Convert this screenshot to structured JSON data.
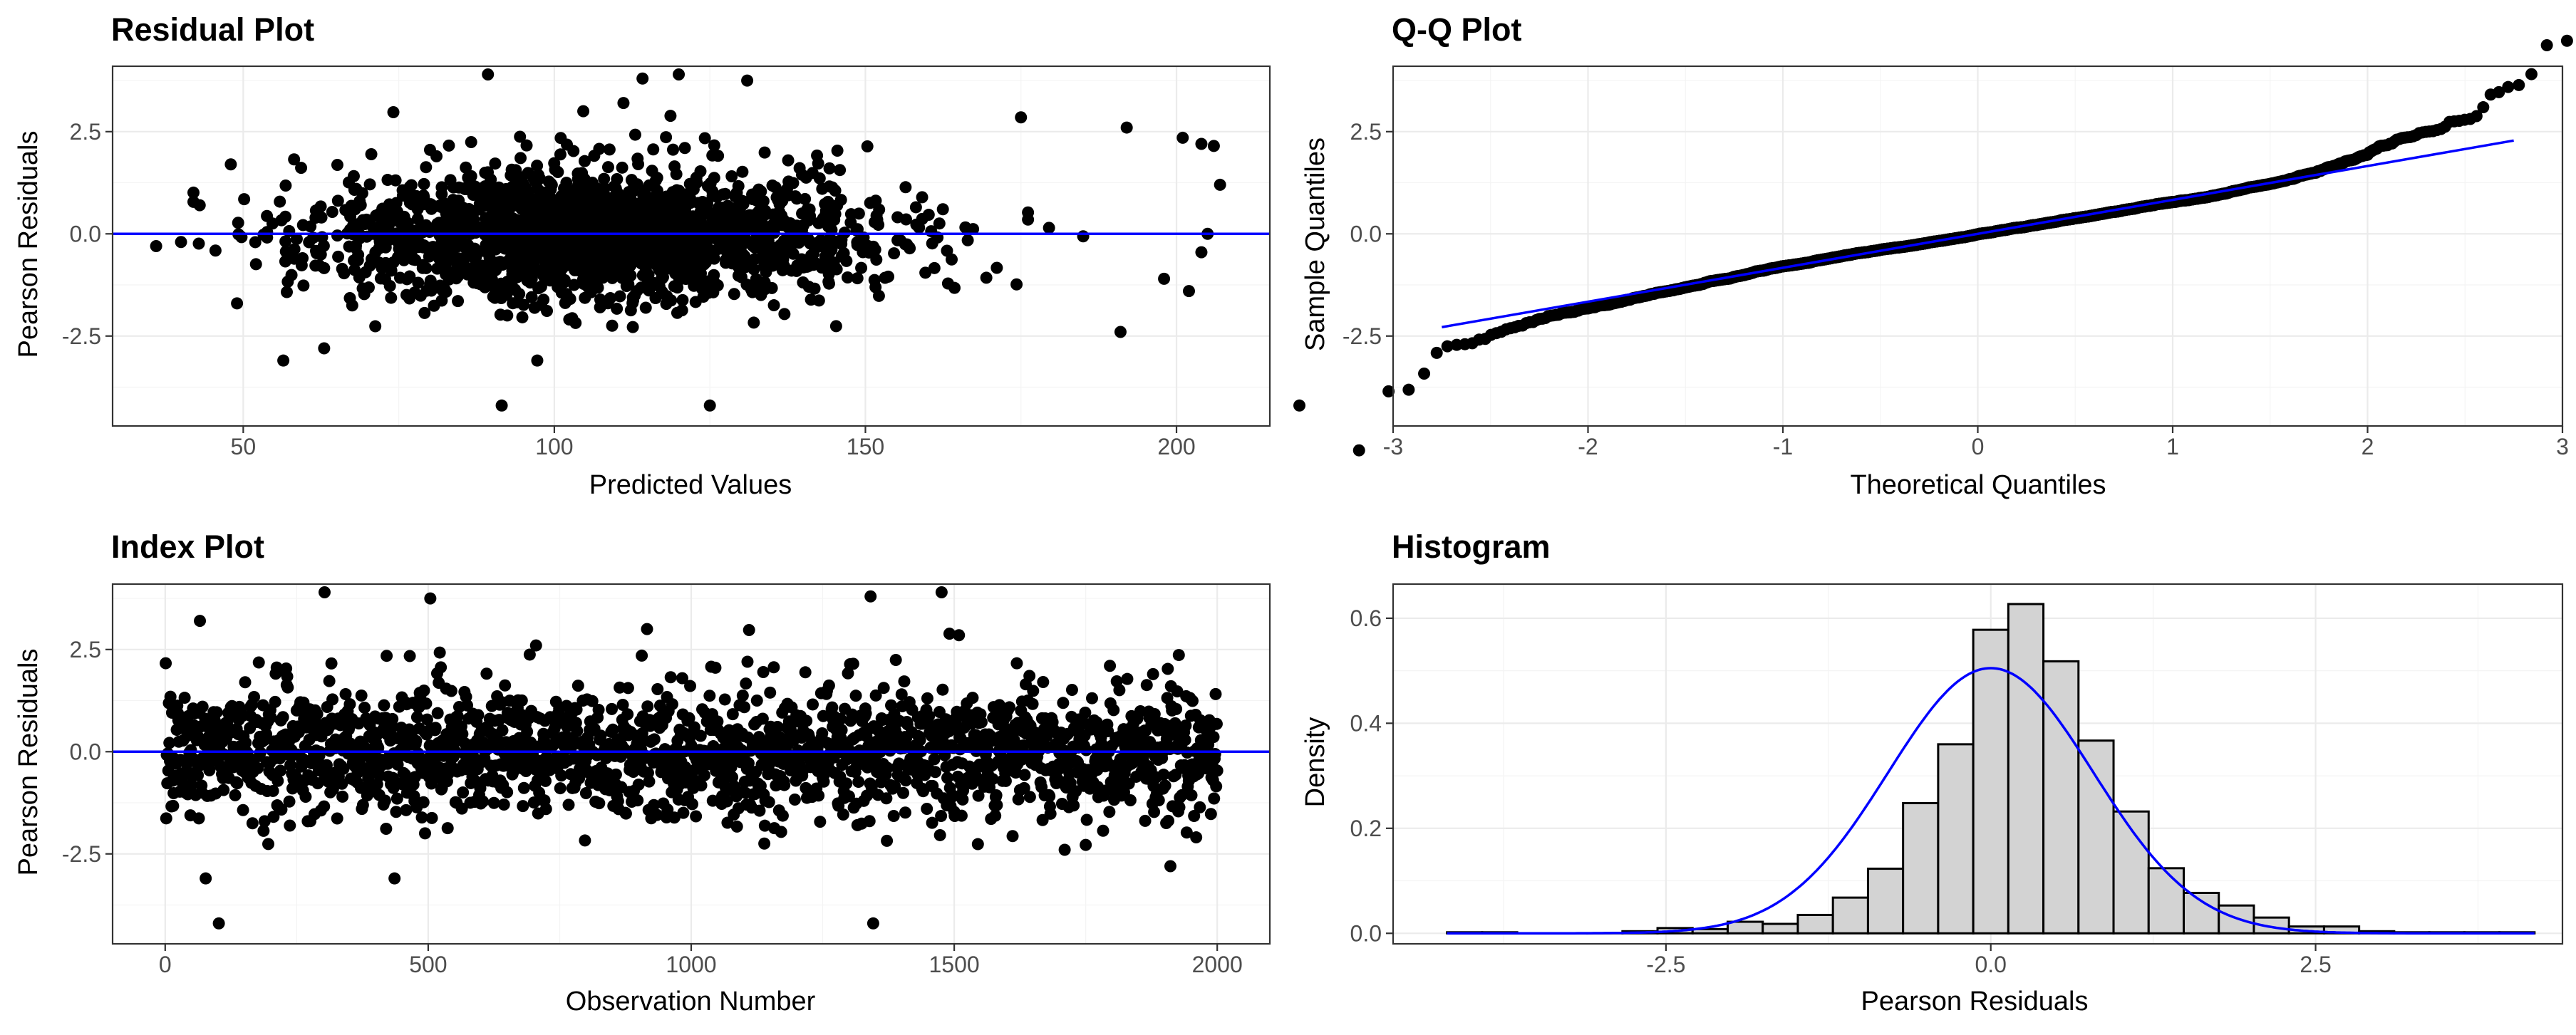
{
  "colors": {
    "points": "#000000",
    "reference_line": "#0000ff",
    "bars_fill": "#d3d3d3",
    "bars_stroke": "#000000",
    "grid": "#ebebeb",
    "border": "#333333"
  },
  "chart_data": [
    {
      "id": "residual",
      "type": "scatter",
      "title": "Residual Plot",
      "xlabel": "Predicted Values",
      "ylabel": "Pearson Residuals",
      "xlim": [
        29,
        215
      ],
      "ylim": [
        -4.7,
        4.1
      ],
      "x_ticks": [
        50,
        100,
        150,
        200
      ],
      "x_tick_labels": [
        "50",
        "100",
        "150",
        "200"
      ],
      "y_ticks": [
        -2.5,
        0.0,
        2.5
      ],
      "y_tick_labels": [
        "-2.5",
        "0.0",
        "2.5"
      ],
      "reference_line": {
        "type": "horizontal",
        "y": 0
      },
      "n_points": 2000,
      "x_distribution": {
        "mean": 108,
        "sd": 22,
        "min": 36,
        "max": 207
      },
      "y_distribution": {
        "mean": 0,
        "sd": 0.8
      },
      "notable_points": [
        [
          125,
          -4.2
        ],
        [
          120,
          3.9
        ],
        [
          131,
          3.75
        ],
        [
          192,
          2.6
        ],
        [
          201,
          2.35
        ],
        [
          204,
          2.2
        ],
        [
          206,
          2.15
        ],
        [
          175,
          2.85
        ],
        [
          191,
          -2.4
        ],
        [
          63,
          -2.8
        ]
      ]
    },
    {
      "id": "qq",
      "type": "scatter",
      "title": "Q-Q Plot",
      "xlabel": "Theoretical Quantiles",
      "ylabel": "Sample Quantiles",
      "xlim": [
        -3.0,
        3.0
      ],
      "ylim": [
        -4.7,
        4.1
      ],
      "x_ticks": [
        -3,
        -2,
        -1,
        0,
        1,
        2,
        3
      ],
      "x_tick_labels": [
        "-3",
        "-2",
        "-1",
        "0",
        "1",
        "2",
        "3"
      ],
      "y_ticks": [
        -2.5,
        0.0,
        2.5
      ],
      "y_tick_labels": [
        "-2.5",
        "0.0",
        "2.5"
      ],
      "reference_line": {
        "type": "line",
        "intercept": 0.0,
        "slope": 0.83,
        "x_range": [
          -2.75,
          2.75
        ]
      },
      "n_points": 2000,
      "sample_min": -4.2,
      "sample_max": 3.9
    },
    {
      "id": "index",
      "type": "scatter",
      "title": "Index Plot",
      "xlabel": "Observation Number",
      "ylabel": "Pearson Residuals",
      "xlim": [
        -100,
        2100
      ],
      "ylim": [
        -4.7,
        4.1
      ],
      "x_ticks": [
        0,
        500,
        1000,
        1500,
        2000
      ],
      "x_tick_labels": [
        "0",
        "500",
        "1000",
        "1500",
        "2000"
      ],
      "y_ticks": [
        -2.5,
        0.0,
        2.5
      ],
      "y_tick_labels": [
        "-2.5",
        "0.0",
        "2.5"
      ],
      "reference_line": {
        "type": "horizontal",
        "y": 0
      },
      "n_points": 2000,
      "notable_points": [
        [
          1345,
          -4.2
        ],
        [
          1340,
          3.8
        ],
        [
          1475,
          3.9
        ],
        [
          915,
          3.0
        ],
        [
          65,
          3.2
        ],
        [
          435,
          -3.1
        ]
      ]
    },
    {
      "id": "histogram",
      "type": "bar",
      "title": "Histogram",
      "xlabel": "Pearson Residuals",
      "ylabel": "Density",
      "xlim": [
        -4.6,
        4.4
      ],
      "ylim": [
        -0.02,
        0.665
      ],
      "x_ticks": [
        -2.5,
        0.0,
        2.5
      ],
      "x_tick_labels": [
        "-2.5",
        "0.0",
        "2.5"
      ],
      "y_ticks": [
        0.0,
        0.2,
        0.4,
        0.6
      ],
      "y_tick_labels": [
        "0.0",
        "0.2",
        "0.4",
        "0.6"
      ],
      "bin_width": 0.27,
      "bin_start": -4.185,
      "densities": [
        0.002,
        0.002,
        0.0,
        0.0,
        0.0,
        0.004,
        0.01,
        0.008,
        0.022,
        0.018,
        0.035,
        0.068,
        0.123,
        0.248,
        0.36,
        0.578,
        0.627,
        0.518,
        0.367,
        0.232,
        0.124,
        0.077,
        0.053,
        0.03,
        0.013,
        0.013,
        0.004,
        0.002,
        0.002,
        0.002,
        0.002
      ],
      "density_curve": {
        "type": "normal",
        "mean": 0.0,
        "sd": 0.79
      }
    }
  ]
}
